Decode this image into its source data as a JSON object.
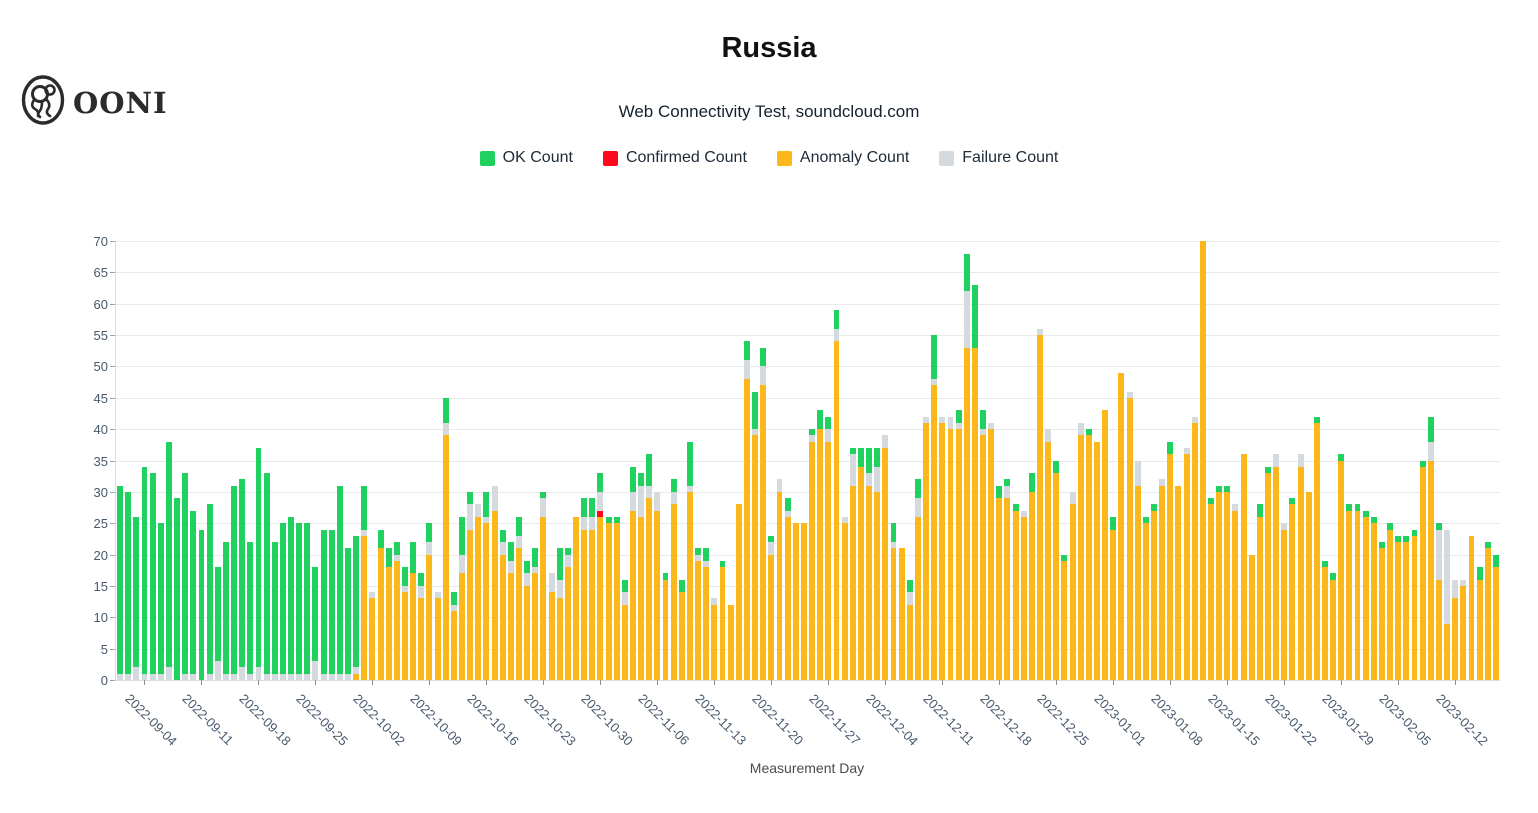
{
  "header": {
    "brand": "OONI",
    "title": "Russia",
    "subtitle": "Web Connectivity Test, soundcloud.com"
  },
  "legend": [
    {
      "label": "OK Count",
      "key": "ok",
      "color": "#21d160"
    },
    {
      "label": "Confirmed Count",
      "key": "confirmed",
      "color": "#fa0a1c"
    },
    {
      "label": "Anomaly Count",
      "key": "anomaly",
      "color": "#fcb81b"
    },
    {
      "label": "Failure Count",
      "key": "failure",
      "color": "#d4dade"
    }
  ],
  "chart_data": {
    "type": "bar",
    "stacked": true,
    "title": "Russia",
    "subtitle": "Web Connectivity Test, soundcloud.com",
    "xlabel": "Measurement Day",
    "ylabel": "",
    "ylim": [
      0,
      70
    ],
    "yticks": [
      0,
      5,
      10,
      15,
      20,
      25,
      30,
      35,
      40,
      45,
      50,
      55,
      60,
      65,
      70
    ],
    "grid": true,
    "legend_position": "top",
    "stack_order_bottom_to_top": [
      "anomaly",
      "confirmed",
      "failure",
      "ok"
    ],
    "start_date": "2022-09-01",
    "end_date": "2023-02-17",
    "num_days": 170,
    "x_tick_first_index": 3,
    "x_tick_every": 7,
    "x_tick_labels": [
      "2022-09-04",
      "2022-09-11",
      "2022-09-18",
      "2022-09-25",
      "2022-10-02",
      "2022-10-09",
      "2022-10-16",
      "2022-10-23",
      "2022-10-30",
      "2022-11-06",
      "2022-11-13",
      "2022-11-20",
      "2022-11-27",
      "2022-12-04",
      "2022-12-11",
      "2022-12-18",
      "2022-12-25",
      "2023-01-01",
      "2023-01-08",
      "2023-01-15",
      "2023-01-22",
      "2023-01-29",
      "2023-02-05",
      "2023-02-12"
    ],
    "series": [
      {
        "name": "Anomaly Count",
        "key": "anomaly",
        "color": "#fcb81b",
        "values": [
          0,
          0,
          0,
          0,
          0,
          0,
          0,
          0,
          0,
          0,
          0,
          0,
          0,
          0,
          0,
          0,
          0,
          0,
          0,
          0,
          0,
          0,
          0,
          0,
          0,
          0,
          0,
          0,
          0,
          1,
          23,
          13,
          21,
          18,
          19,
          14,
          17,
          13,
          20,
          13,
          39,
          11,
          17,
          24,
          26,
          25,
          27,
          20,
          17,
          21,
          15,
          17,
          26,
          14,
          13,
          18,
          26,
          24,
          24,
          26,
          25,
          25,
          12,
          27,
          26,
          29,
          27,
          16,
          28,
          14,
          30,
          19,
          18,
          12,
          18,
          12,
          28,
          48,
          39,
          47,
          20,
          30,
          26,
          25,
          25,
          38,
          40,
          38,
          54,
          25,
          31,
          34,
          31,
          30,
          37,
          21,
          21,
          12,
          26,
          41,
          47,
          41,
          40,
          40,
          53,
          53,
          39,
          40,
          29,
          29,
          27,
          26,
          30,
          55,
          38,
          33,
          19,
          28,
          39,
          39,
          38,
          43,
          24,
          49,
          45,
          31,
          25,
          27,
          31,
          36,
          31,
          36,
          41,
          70,
          28,
          30,
          30,
          27,
          36,
          20,
          26,
          33,
          34,
          24,
          28,
          34,
          30,
          41,
          18,
          16,
          35,
          27,
          27,
          26,
          25,
          21,
          24,
          22,
          22,
          23,
          34,
          35,
          16,
          9,
          13,
          15,
          23,
          16,
          21,
          18
        ]
      },
      {
        "name": "Confirmed Count",
        "key": "confirmed",
        "color": "#fa0a1c",
        "values": [
          0,
          0,
          0,
          0,
          0,
          0,
          0,
          0,
          0,
          0,
          0,
          0,
          0,
          0,
          0,
          0,
          0,
          0,
          0,
          0,
          0,
          0,
          0,
          0,
          0,
          0,
          0,
          0,
          0,
          0,
          0,
          0,
          0,
          0,
          0,
          0,
          0,
          0,
          0,
          0,
          0,
          0,
          0,
          0,
          0,
          0,
          0,
          0,
          0,
          0,
          0,
          0,
          0,
          0,
          0,
          0,
          0,
          0,
          0,
          1,
          0,
          0,
          0,
          0,
          0,
          0,
          0,
          0,
          0,
          0,
          0,
          0,
          0,
          0,
          0,
          0,
          0,
          0,
          0,
          0,
          0,
          0,
          0,
          0,
          0,
          0,
          0,
          0,
          0,
          0,
          0,
          0,
          0,
          0,
          0,
          0,
          0,
          0,
          0,
          0,
          0,
          0,
          0,
          0,
          0,
          0,
          0,
          0,
          0,
          0,
          0,
          0,
          0,
          0,
          0,
          0,
          0,
          0,
          0,
          0,
          0,
          0,
          0,
          0,
          0,
          0,
          0,
          0,
          0,
          0,
          0,
          0,
          0,
          0,
          0,
          0,
          0,
          0,
          0,
          0,
          0,
          0,
          0,
          0,
          0,
          0,
          0,
          0,
          0,
          0,
          0,
          0,
          0,
          0,
          0,
          0,
          0,
          0,
          0,
          0,
          0,
          0,
          0,
          0,
          0,
          0,
          0,
          0,
          0,
          0
        ]
      },
      {
        "name": "Failure Count",
        "key": "failure",
        "color": "#d4dade",
        "values": [
          1,
          1,
          2,
          1,
          1,
          1,
          2,
          0,
          1,
          1,
          0,
          1,
          3,
          1,
          1,
          2,
          1,
          2,
          1,
          1,
          1,
          1,
          1,
          1,
          3,
          1,
          1,
          1,
          1,
          1,
          1,
          1,
          0,
          0,
          1,
          1,
          0,
          2,
          2,
          1,
          2,
          1,
          3,
          4,
          2,
          1,
          4,
          2,
          2,
          2,
          2,
          1,
          3,
          3,
          3,
          2,
          0,
          2,
          2,
          3,
          0,
          0,
          2,
          3,
          5,
          2,
          3,
          0,
          2,
          0,
          1,
          1,
          1,
          1,
          0,
          0,
          0,
          3,
          1,
          3,
          2,
          2,
          1,
          0,
          0,
          1,
          0,
          2,
          2,
          1,
          5,
          0,
          2,
          4,
          2,
          1,
          0,
          2,
          3,
          1,
          1,
          1,
          2,
          1,
          9,
          0,
          1,
          1,
          0,
          2,
          0,
          1,
          0,
          1,
          2,
          0,
          0,
          2,
          2,
          0,
          0,
          0,
          0,
          0,
          1,
          4,
          0,
          0,
          1,
          0,
          0,
          1,
          1,
          0,
          0,
          0,
          0,
          1,
          0,
          0,
          0,
          0,
          2,
          1,
          0,
          2,
          0,
          0,
          0,
          0,
          0,
          0,
          0,
          0,
          0,
          0,
          0,
          0,
          0,
          0,
          0,
          3,
          8,
          15,
          3,
          1,
          0,
          0,
          0,
          0
        ]
      },
      {
        "name": "OK Count",
        "key": "ok",
        "color": "#21d160",
        "values": [
          30,
          29,
          24,
          33,
          32,
          24,
          36,
          29,
          32,
          26,
          24,
          27,
          15,
          21,
          30,
          30,
          21,
          35,
          32,
          21,
          24,
          25,
          24,
          24,
          15,
          23,
          23,
          30,
          20,
          21,
          7,
          0,
          3,
          3,
          2,
          3,
          5,
          2,
          3,
          0,
          4,
          2,
          6,
          2,
          0,
          4,
          0,
          2,
          3,
          3,
          2,
          3,
          1,
          0,
          5,
          1,
          0,
          3,
          3,
          3,
          1,
          1,
          2,
          4,
          2,
          5,
          0,
          1,
          2,
          2,
          7,
          1,
          2,
          0,
          1,
          0,
          0,
          3,
          6,
          3,
          1,
          0,
          2,
          0,
          0,
          1,
          3,
          2,
          3,
          0,
          1,
          3,
          4,
          3,
          0,
          3,
          0,
          2,
          3,
          0,
          7,
          0,
          0,
          2,
          6,
          10,
          3,
          0,
          2,
          1,
          1,
          0,
          3,
          0,
          0,
          2,
          1,
          0,
          0,
          1,
          0,
          0,
          2,
          0,
          0,
          0,
          1,
          1,
          0,
          2,
          0,
          0,
          0,
          0,
          1,
          1,
          1,
          0,
          0,
          0,
          2,
          1,
          0,
          0,
          1,
          0,
          0,
          1,
          1,
          1,
          1,
          1,
          1,
          1,
          1,
          1,
          1,
          1,
          1,
          1,
          1,
          4,
          1,
          0,
          0,
          0,
          0,
          2,
          1,
          2
        ]
      }
    ]
  },
  "footer": {
    "xlabel": "Measurement Day"
  }
}
